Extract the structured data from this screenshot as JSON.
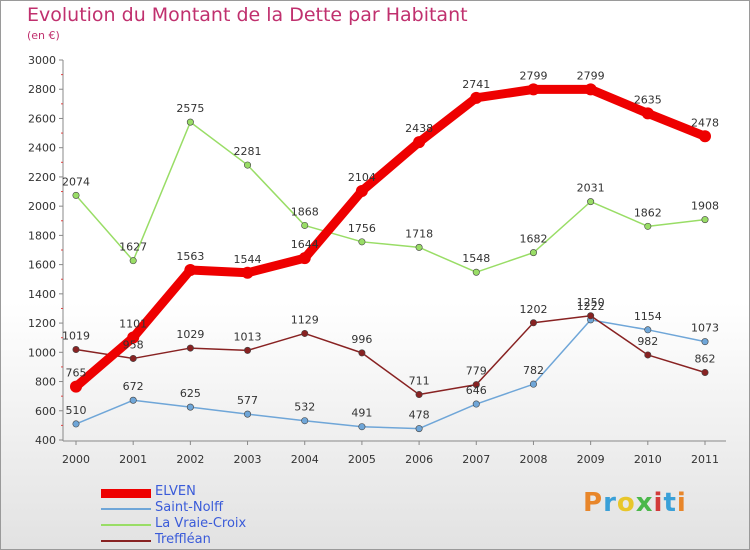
{
  "header": {
    "title": "Evolution du Montant de la Dette par Habitant",
    "unit": "(en €)"
  },
  "logo": {
    "text": "Proxiti",
    "colors": [
      "#e8862a",
      "#3aa0d8",
      "#e8c62a",
      "#4bb84b",
      "#d23a3a",
      "#3aa0d8",
      "#e8862a"
    ]
  },
  "chart_data": {
    "type": "line",
    "x": [
      "2000",
      "2001",
      "2002",
      "2003",
      "2004",
      "2005",
      "2006",
      "2007",
      "2008",
      "2009",
      "2010",
      "2011"
    ],
    "ylim": [
      400,
      3000
    ],
    "yticks": [
      400,
      600,
      800,
      1000,
      1200,
      1400,
      1600,
      1800,
      2000,
      2200,
      2400,
      2600,
      2800,
      3000
    ],
    "grid": false,
    "legend_position": "bottom-left",
    "series": [
      {
        "name": "ELVEN",
        "color": "#ee0000",
        "values": [
          765,
          1101,
          1563,
          1544,
          1644,
          2104,
          2438,
          2741,
          2799,
          2799,
          2635,
          2478
        ]
      },
      {
        "name": "Saint-Nolff",
        "color": "#6fa6d8",
        "values": [
          510,
          672,
          625,
          577,
          532,
          491,
          478,
          646,
          782,
          1222,
          1154,
          1073
        ]
      },
      {
        "name": "La Vraie-Croix",
        "color": "#99dd66",
        "values": [
          2074,
          1627,
          2575,
          2281,
          1868,
          1756,
          1718,
          1548,
          1682,
          2031,
          1862,
          1908
        ]
      },
      {
        "name": "Treffléan",
        "color": "#882222",
        "values": [
          1019,
          958,
          1029,
          1013,
          1129,
          996,
          711,
          779,
          1202,
          1250,
          982,
          862
        ]
      }
    ]
  }
}
